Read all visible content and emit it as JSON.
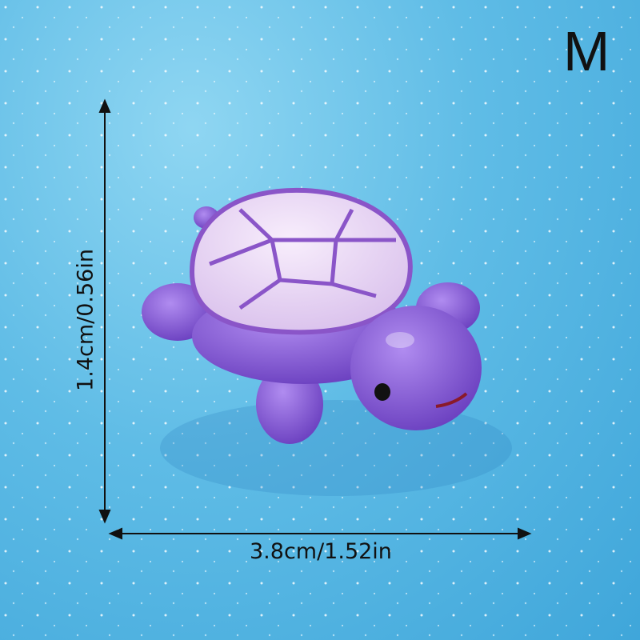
{
  "size_label": "M",
  "dimensions": {
    "height": "1.4cm/0.56in",
    "width": "3.8cm/1.52in"
  },
  "colors": {
    "background": "#5fbce6",
    "shell": "#efe0f6",
    "shell_lines": "#8a55c8",
    "body": "#8a5fd6"
  }
}
